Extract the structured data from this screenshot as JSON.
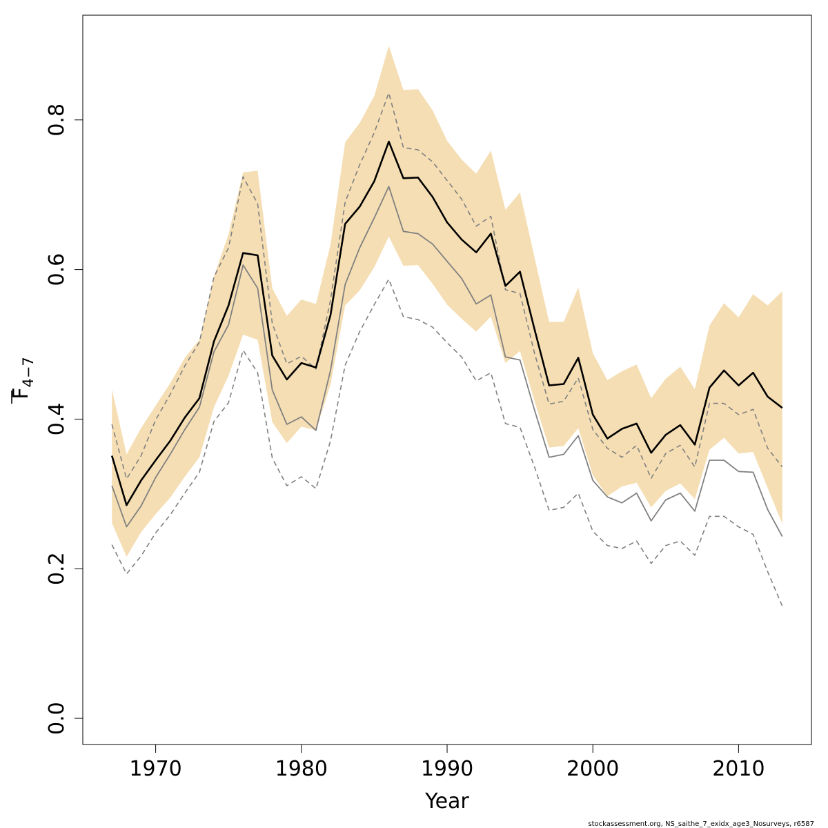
{
  "chart_data": {
    "type": "line",
    "xlabel": "Year",
    "ylabel_main": "F",
    "ylabel_sub": "4−7",
    "footer": "stockassessment.org, NS_saithe_7_exidx_age3_Nosurveys, r6587",
    "xlim": [
      1965,
      2015
    ],
    "ylim": [
      -0.035,
      0.94
    ],
    "x_ticks": [
      1970,
      1980,
      1990,
      2000,
      2010
    ],
    "x_tick_labels": [
      "1970",
      "1980",
      "1990",
      "2000",
      "2010"
    ],
    "y_ticks": [
      0.0,
      0.2,
      0.4,
      0.6,
      0.8
    ],
    "y_tick_labels": [
      "0.0",
      "0.2",
      "0.4",
      "0.6",
      "0.8"
    ],
    "grid": false,
    "legend": "none",
    "colors": {
      "band": "#f5deb3",
      "estimate": "#000000",
      "other_estimate": "#808080",
      "other_interval": "#808080"
    },
    "x": [
      1967,
      1968,
      1969,
      1970,
      1971,
      1972,
      1973,
      1974,
      1975,
      1976,
      1977,
      1978,
      1979,
      1980,
      1981,
      1982,
      1983,
      1984,
      1985,
      1986,
      1987,
      1988,
      1989,
      1990,
      1991,
      1992,
      1993,
      1994,
      1995,
      1996,
      1997,
      1998,
      1999,
      2000,
      2001,
      2002,
      2003,
      2004,
      2005,
      2006,
      2007,
      2008,
      2009,
      2010,
      2011,
      2012,
      2013
    ],
    "series": [
      {
        "role": "estimate",
        "values": [
          0.351,
          0.285,
          0.318,
          0.345,
          0.371,
          0.402,
          0.428,
          0.504,
          0.552,
          0.622,
          0.619,
          0.485,
          0.453,
          0.475,
          0.469,
          0.539,
          0.661,
          0.684,
          0.718,
          0.771,
          0.722,
          0.723,
          0.697,
          0.663,
          0.64,
          0.623,
          0.648,
          0.578,
          0.597,
          0.52,
          0.445,
          0.447,
          0.482,
          0.406,
          0.374,
          0.387,
          0.394,
          0.355,
          0.379,
          0.392,
          0.366,
          0.442,
          0.465,
          0.445,
          0.462,
          0.43,
          0.415
        ]
      },
      {
        "role": "band_upper",
        "values": [
          0.44,
          0.353,
          0.388,
          0.418,
          0.448,
          0.482,
          0.506,
          0.591,
          0.647,
          0.73,
          0.732,
          0.575,
          0.538,
          0.56,
          0.554,
          0.633,
          0.77,
          0.796,
          0.832,
          0.899,
          0.84,
          0.841,
          0.813,
          0.772,
          0.747,
          0.728,
          0.759,
          0.68,
          0.703,
          0.616,
          0.53,
          0.53,
          0.576,
          0.488,
          0.452,
          0.464,
          0.473,
          0.428,
          0.454,
          0.47,
          0.44,
          0.525,
          0.555,
          0.536,
          0.567,
          0.552,
          0.571
        ]
      },
      {
        "role": "band_lower",
        "values": [
          0.261,
          0.216,
          0.249,
          0.273,
          0.295,
          0.323,
          0.349,
          0.416,
          0.458,
          0.513,
          0.506,
          0.396,
          0.368,
          0.39,
          0.385,
          0.446,
          0.552,
          0.572,
          0.603,
          0.644,
          0.605,
          0.606,
          0.581,
          0.553,
          0.534,
          0.517,
          0.537,
          0.475,
          0.491,
          0.424,
          0.362,
          0.364,
          0.388,
          0.325,
          0.297,
          0.31,
          0.315,
          0.282,
          0.304,
          0.314,
          0.293,
          0.359,
          0.375,
          0.354,
          0.356,
          0.308,
          0.26
        ]
      },
      {
        "role": "other_estimate",
        "values": [
          0.311,
          0.256,
          0.284,
          0.322,
          0.353,
          0.386,
          0.416,
          0.49,
          0.526,
          0.606,
          0.575,
          0.439,
          0.393,
          0.403,
          0.385,
          0.465,
          0.58,
          0.629,
          0.669,
          0.711,
          0.651,
          0.648,
          0.634,
          0.611,
          0.588,
          0.554,
          0.566,
          0.483,
          0.479,
          0.412,
          0.349,
          0.353,
          0.378,
          0.318,
          0.296,
          0.288,
          0.301,
          0.264,
          0.292,
          0.301,
          0.277,
          0.345,
          0.345,
          0.33,
          0.329,
          0.279,
          0.243
        ]
      },
      {
        "role": "other_upper",
        "values": [
          0.393,
          0.32,
          0.351,
          0.399,
          0.433,
          0.471,
          0.503,
          0.59,
          0.629,
          0.724,
          0.688,
          0.528,
          0.474,
          0.484,
          0.467,
          0.559,
          0.69,
          0.74,
          0.783,
          0.836,
          0.763,
          0.76,
          0.744,
          0.719,
          0.694,
          0.658,
          0.671,
          0.573,
          0.568,
          0.488,
          0.42,
          0.424,
          0.455,
          0.386,
          0.361,
          0.349,
          0.365,
          0.321,
          0.354,
          0.365,
          0.336,
          0.421,
          0.421,
          0.406,
          0.413,
          0.361,
          0.336
        ]
      },
      {
        "role": "other_lower",
        "values": [
          0.232,
          0.193,
          0.217,
          0.248,
          0.272,
          0.301,
          0.329,
          0.397,
          0.422,
          0.492,
          0.462,
          0.348,
          0.311,
          0.323,
          0.307,
          0.371,
          0.472,
          0.517,
          0.553,
          0.587,
          0.537,
          0.533,
          0.523,
          0.502,
          0.483,
          0.451,
          0.462,
          0.394,
          0.389,
          0.336,
          0.278,
          0.282,
          0.301,
          0.25,
          0.231,
          0.227,
          0.237,
          0.207,
          0.231,
          0.237,
          0.218,
          0.27,
          0.27,
          0.256,
          0.246,
          0.196,
          0.15
        ]
      }
    ]
  }
}
